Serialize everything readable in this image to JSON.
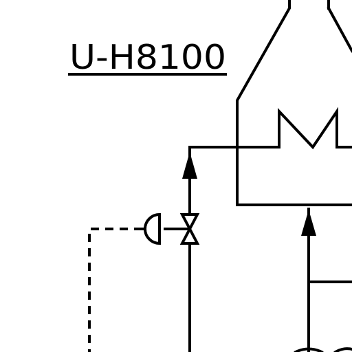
{
  "diagram": {
    "equipment_tag": "U-H8100"
  }
}
